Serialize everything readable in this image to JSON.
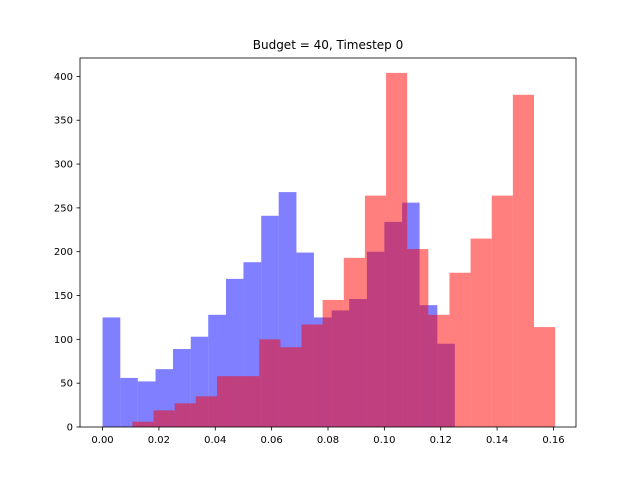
{
  "chart_data": {
    "type": "bar",
    "title": "Budget = 40, Timestep 0",
    "xlabel": "",
    "ylabel": "",
    "xlim": [
      -0.008,
      0.168
    ],
    "ylim": [
      0,
      421
    ],
    "xticks": [
      0.0,
      0.02,
      0.04,
      0.06,
      0.08,
      0.1,
      0.12,
      0.14,
      0.16
    ],
    "xtick_labels": [
      "0.00",
      "0.02",
      "0.04",
      "0.06",
      "0.08",
      "0.10",
      "0.12",
      "0.14",
      "0.16"
    ],
    "yticks": [
      0,
      50,
      100,
      150,
      200,
      250,
      300,
      350,
      400
    ],
    "ytick_labels": [
      "0",
      "50",
      "100",
      "150",
      "200",
      "250",
      "300",
      "350",
      "400"
    ],
    "grid": false,
    "series": [
      {
        "color": "#0000ff",
        "alpha": 0.5,
        "bin_edges": [
          0.0,
          0.0063,
          0.0125,
          0.0188,
          0.025,
          0.0313,
          0.0375,
          0.0438,
          0.05,
          0.0563,
          0.0625,
          0.0688,
          0.075,
          0.0813,
          0.0875,
          0.0938,
          0.1,
          0.1063,
          0.1125,
          0.1188,
          0.125
        ],
        "counts": [
          125,
          56,
          52,
          66,
          89,
          103,
          128,
          169,
          188,
          241,
          268,
          199,
          125,
          133,
          146,
          200,
          234,
          256,
          139,
          95
        ]
      },
      {
        "color": "#ff0000",
        "alpha": 0.5,
        "bin_edges": [
          0.0106,
          0.0181,
          0.0256,
          0.0331,
          0.0406,
          0.0481,
          0.0556,
          0.0631,
          0.0706,
          0.0781,
          0.0856,
          0.0931,
          0.1006,
          0.1081,
          0.1156,
          0.1231,
          0.1306,
          0.1381,
          0.1456,
          0.1531,
          0.1606
        ],
        "counts": [
          6,
          19,
          27,
          35,
          58,
          58,
          100,
          91,
          117,
          145,
          193,
          264,
          404,
          203,
          128,
          176,
          215,
          264,
          379,
          114
        ]
      }
    ]
  }
}
